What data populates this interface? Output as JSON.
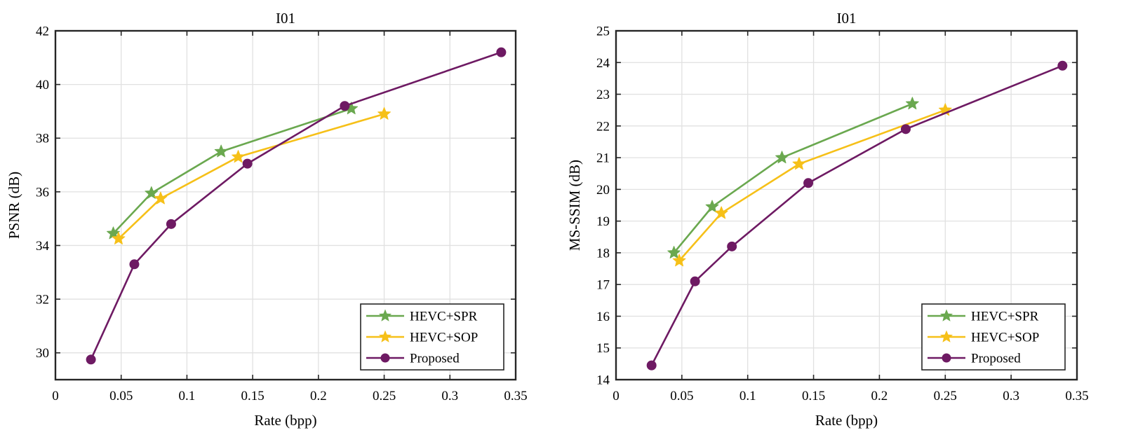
{
  "chart_data": [
    {
      "type": "line",
      "title": "I01",
      "xlabel": "Rate (bpp)",
      "ylabel": "PSNR (dB)",
      "xlim": [
        0,
        0.35
      ],
      "ylim": [
        29,
        42
      ],
      "xticks": [
        0,
        0.05,
        0.1,
        0.15,
        0.2,
        0.25,
        0.3,
        0.35
      ],
      "xtick_labels": [
        "0",
        "0.05",
        "0.1",
        "0.15",
        "0.2",
        "0.25",
        "0.3",
        "0.35"
      ],
      "yticks": [
        30,
        32,
        34,
        36,
        38,
        40,
        42
      ],
      "ytick_labels": [
        "30",
        "32",
        "34",
        "36",
        "38",
        "40",
        "42"
      ],
      "grid": true,
      "legend_position": "bottom-right",
      "series": [
        {
          "name": "HEVC+SPR",
          "color": "#6aa84f",
          "marker": "star",
          "x": [
            0.044,
            0.073,
            0.126,
            0.225
          ],
          "y": [
            34.45,
            35.95,
            37.5,
            39.1
          ]
        },
        {
          "name": "HEVC+SOP",
          "color": "#f6c018",
          "marker": "star",
          "x": [
            0.048,
            0.08,
            0.139,
            0.25
          ],
          "y": [
            34.25,
            35.75,
            37.3,
            38.9
          ]
        },
        {
          "name": "Proposed",
          "color": "#6e1a63",
          "marker": "circle",
          "x": [
            0.027,
            0.06,
            0.088,
            0.146,
            0.22,
            0.339
          ],
          "y": [
            29.75,
            33.3,
            34.8,
            37.05,
            39.2,
            41.2
          ]
        }
      ]
    },
    {
      "type": "line",
      "title": "I01",
      "xlabel": "Rate (bpp)",
      "ylabel": "MS-SSIM (dB)",
      "xlim": [
        0,
        0.35
      ],
      "ylim": [
        14,
        25
      ],
      "xticks": [
        0,
        0.05,
        0.1,
        0.15,
        0.2,
        0.25,
        0.3,
        0.35
      ],
      "xtick_labels": [
        "0",
        "0.05",
        "0.1",
        "0.15",
        "0.2",
        "0.25",
        "0.3",
        "0.35"
      ],
      "yticks": [
        14,
        15,
        16,
        17,
        18,
        19,
        20,
        21,
        22,
        23,
        24,
        25
      ],
      "ytick_labels": [
        "14",
        "15",
        "16",
        "17",
        "18",
        "19",
        "20",
        "21",
        "22",
        "23",
        "24",
        "25"
      ],
      "grid": true,
      "legend_position": "bottom-right",
      "series": [
        {
          "name": "HEVC+SPR",
          "color": "#6aa84f",
          "marker": "star",
          "x": [
            0.044,
            0.073,
            0.126,
            0.225
          ],
          "y": [
            18.0,
            19.45,
            21.0,
            22.7
          ]
        },
        {
          "name": "HEVC+SOP",
          "color": "#f6c018",
          "marker": "star",
          "x": [
            0.048,
            0.08,
            0.139,
            0.25
          ],
          "y": [
            17.75,
            19.25,
            20.8,
            22.5
          ]
        },
        {
          "name": "Proposed",
          "color": "#6e1a63",
          "marker": "circle",
          "x": [
            0.027,
            0.06,
            0.088,
            0.146,
            0.22,
            0.339
          ],
          "y": [
            14.45,
            17.1,
            18.2,
            20.2,
            21.9,
            23.9
          ]
        }
      ]
    }
  ]
}
